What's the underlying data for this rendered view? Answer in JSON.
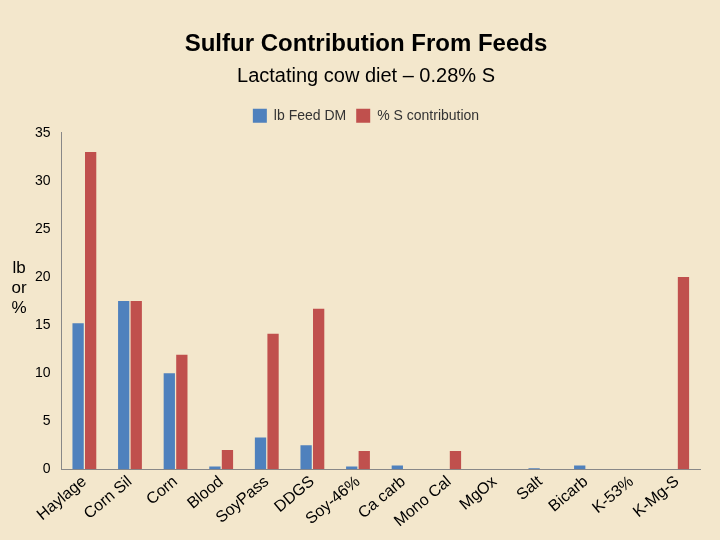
{
  "chart_data": {
    "type": "bar",
    "title": "Sulfur Contribution From Feeds",
    "subtitle": "Lactating cow diet – 0.28% S",
    "y_label": "lb or %",
    "categories": [
      "Haylage",
      "Corn Sil",
      "Corn",
      "Blood",
      "SoyPass",
      "DDGS",
      "Soy-46%",
      "Ca carb",
      "Mono Cal",
      "MgOx",
      "Salt",
      "Bicarb",
      "K-53%",
      "K-Mg-S"
    ],
    "series": [
      {
        "name": "lb Feed DM",
        "color": "#4f81bd",
        "values": [
          15.2,
          17.5,
          10,
          0.3,
          3.3,
          2.5,
          0.3,
          0.4,
          0,
          0,
          0.1,
          0.4,
          0,
          0
        ]
      },
      {
        "name": "% S contribution",
        "color": "#c0504d",
        "values": [
          33,
          17.5,
          11.9,
          2,
          14.1,
          16.7,
          1.9,
          0,
          1.9,
          0,
          0,
          0,
          0,
          20
        ]
      }
    ],
    "ylim": [
      0,
      35
    ],
    "yticks": [
      0,
      5,
      10,
      15,
      20,
      25,
      30,
      35
    ],
    "grid": false,
    "legend": "top"
  }
}
